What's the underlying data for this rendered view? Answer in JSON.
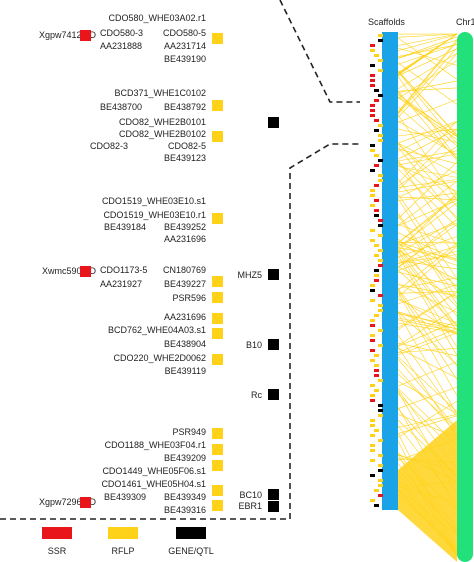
{
  "colors": {
    "ssr": "#e8161b",
    "rflp": "#ffd21a",
    "gene": "#000000",
    "scaffolds": "#1aa3e6",
    "chr": "#22e07a",
    "links": "#ffd21a"
  },
  "headers": {
    "scaffolds": "Scaffolds",
    "chr": "Chr1"
  },
  "ssr": {
    "xgpw7412": "Xgpw7412-1D",
    "xwmc590": "Xwmc590-1D",
    "xgpw7296": "Xgpw7296-1D"
  },
  "rflp": {
    "g1": [
      "CDO580_WHE03A02.r1",
      "CDO580-5",
      "AA231714",
      "BE439190"
    ],
    "g1l": [
      "CDO580-3",
      "AA231888"
    ],
    "g2": [
      "BCD371_WHE1C0102",
      "BE438792"
    ],
    "g2l": [
      "BE438700"
    ],
    "g3": [
      "CDO82_WHE2B0101",
      "CDO82_WHE2B0102",
      "CDO82-5",
      "BE439123"
    ],
    "g3l": [
      "CDO82-3"
    ],
    "g4": [
      "CDO1519_WHE03E10.s1",
      "CDO1519_WHE03E10.r1",
      "BE439252",
      "AA231696"
    ],
    "g4l": [
      "BE439184"
    ],
    "g5": [
      "CN180769",
      "BE439227",
      "PSR596"
    ],
    "g5l": [
      "CDO1173-5",
      "AA231927"
    ],
    "g6": [
      "AA231696",
      "BCD762_WHE04A03.s1",
      "BE438904",
      "CDO220_WHE2D0062",
      "BE439119"
    ],
    "g7": [
      "PSR949",
      "CDO1188_WHE03F04.r1",
      "BE439209",
      "CDO1449_WHE05F06.s1",
      "CDO1461_WHE05H04.s1",
      "BE439349",
      "BE439316"
    ],
    "g7l": [
      "BE439309"
    ]
  },
  "genes": {
    "mhz5": "MHZ5",
    "b10": "B10",
    "rc": "Rc",
    "bc10": "BC10",
    "ebr1": "EBR1"
  },
  "legend": {
    "ssr": "SSR",
    "rflp": "RFLP",
    "gene": "GENE/QTL"
  }
}
